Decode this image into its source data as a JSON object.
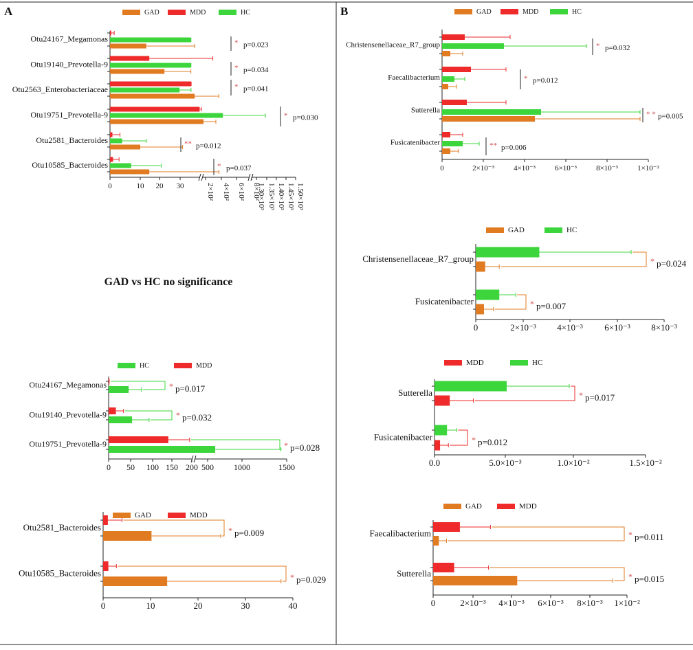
{
  "panels": {
    "A": "A",
    "B": "B"
  },
  "note_text": "GAD vs HC no significance",
  "colors": {
    "GAD": "#E07B22",
    "MDD": "#EE2A2A",
    "HC": "#3CD53C",
    "text": "#111111",
    "sig": "#D24B4B"
  },
  "chart_data": [
    {
      "id": "A1",
      "type": "bar",
      "orientation": "horizontal",
      "legend": [
        "GAD",
        "MDD",
        "HC"
      ],
      "categories": [
        "Otu24167_Megamonas",
        "Otu19140_Prevotella-9",
        "Otu2563_Enterobacteriaceae",
        "Otu19751_Prevotella-9",
        "Otu2581_Bacteroides",
        "Otu10585_Bacteroides"
      ],
      "series": [
        {
          "name": "MDD",
          "values": [
            0.4,
            13,
            39,
            150,
            0.8,
            1.0
          ],
          "errors": [
            1.0,
            21,
            2,
            24,
            2.5,
            2
          ]
        },
        {
          "name": "HC",
          "values": [
            36.5,
            36.5,
            23,
            450,
            4,
            7
          ],
          "errors": [
            1.5,
            1.5,
            16,
            550,
            8,
            10
          ]
        },
        {
          "name": "GAD",
          "values": [
            12,
            18,
            28,
            200,
            10,
            13
          ],
          "errors": [
            16,
            19,
            8,
            160,
            14,
            23
          ]
        }
      ],
      "x_ticks": [
        "0",
        "10",
        "20",
        "30",
        "2×10²",
        "4×10²",
        "6×10²",
        "8×10²",
        "1.30×10³",
        "1.35×10³",
        "1.40×10³",
        "1.45×10³",
        "1.50×10³"
      ],
      "annotations": [
        {
          "category": "Otu24167_Megamonas",
          "stars": "*",
          "p": "p=0.023"
        },
        {
          "category": "Otu19140_Prevotella-9",
          "stars": "*",
          "p": "p=0.034"
        },
        {
          "category": "Otu2563_Enterobacteriaceae",
          "stars": "*",
          "p": "p=0.041"
        },
        {
          "category": "Otu19751_Prevotella-9",
          "stars": "*",
          "p": "p=0.030"
        },
        {
          "category": "Otu2581_Bacteroides",
          "stars": "**",
          "p": "p=0.012"
        },
        {
          "category": "Otu10585_Bacteroides",
          "stars": "*",
          "p": "p=0.037"
        }
      ]
    },
    {
      "id": "A2",
      "type": "bar",
      "orientation": "horizontal",
      "legend": [
        "HC",
        "MDD"
      ],
      "categories": [
        "Otu24167_Megamonas",
        "Otu19140_Prevotella-9",
        "Otu19751_Prevotella-9"
      ],
      "series": [
        {
          "name": "MDD",
          "values": [
            1,
            17,
            140
          ],
          "errors": [
            0.5,
            18,
            50
          ]
        },
        {
          "name": "HC",
          "values": [
            47,
            55,
            500
          ],
          "errors": [
            30,
            40,
            950
          ]
        }
      ],
      "x_ticks": [
        "0",
        "50",
        "100",
        "150",
        "200",
        "500",
        "1000",
        "1500"
      ],
      "annotations": [
        {
          "stars": "*",
          "p": "p=0.017"
        },
        {
          "stars": "*",
          "p": "p=0.032"
        },
        {
          "stars": "*",
          "p": "p=0.028"
        }
      ]
    },
    {
      "id": "A3",
      "type": "bar",
      "orientation": "horizontal",
      "legend": [
        "GAD",
        "MDD"
      ],
      "categories": [
        "Otu2581_Bacteroides",
        "Otu10585_Bacteroides"
      ],
      "series": [
        {
          "name": "MDD",
          "values": [
            1.0,
            1.1
          ],
          "errors": [
            3,
            1.7
          ]
        },
        {
          "name": "GAD",
          "values": [
            10.2,
            13.5
          ],
          "errors": [
            14.6,
            24
          ]
        }
      ],
      "x_ticks": [
        "0",
        "10",
        "20",
        "30",
        "40"
      ],
      "xlim": [
        0,
        40
      ],
      "annotations": [
        {
          "stars": "*",
          "p": "p=0.009"
        },
        {
          "stars": "*",
          "p": "p=0.029"
        }
      ]
    },
    {
      "id": "B1",
      "type": "bar",
      "orientation": "horizontal",
      "legend": [
        "GAD",
        "MDD",
        "HC"
      ],
      "categories": [
        "Christensenellaceae_R7_group",
        "Faecalibacterium",
        "Sutterella",
        "Fusicatenibacter"
      ],
      "series": [
        {
          "name": "MDD",
          "values": [
            0.0011,
            0.0014,
            0.0012,
            0.0004
          ],
          "errors": [
            0.0022,
            0.0017,
            0.0019,
            0.0006
          ]
        },
        {
          "name": "HC",
          "values": [
            0.003,
            0.0006,
            0.0048,
            0.001
          ],
          "errors": [
            0.004,
            0.0005,
            0.0048,
            0.0008
          ]
        },
        {
          "name": "GAD",
          "values": [
            0.0004,
            0.0003,
            0.0045,
            0.0004
          ],
          "errors": [
            0.0006,
            0.0004,
            0.0051,
            0.0004
          ]
        }
      ],
      "x_ticks": [
        "0",
        "2×10⁻³",
        "4×10⁻³",
        "6×10⁻³",
        "8×10⁻³",
        "1×10⁻²"
      ],
      "xlim": [
        0,
        0.01
      ],
      "annotations": [
        {
          "stars": "*",
          "p": "p=0.032"
        },
        {
          "stars": "*",
          "p": "p=0.012"
        },
        {
          "stars": "* *",
          "p": "p=0.005"
        },
        {
          "stars": "**",
          "p": "p=0.006"
        }
      ]
    },
    {
      "id": "B2",
      "type": "bar",
      "orientation": "horizontal",
      "legend": [
        "GAD",
        "HC"
      ],
      "categories": [
        "Christensenellaceae_R7_group",
        "Fusicatenibacter"
      ],
      "series": [
        {
          "name": "HC",
          "values": [
            0.0027,
            0.001
          ],
          "errors": [
            0.0039,
            0.0007
          ]
        },
        {
          "name": "GAD",
          "values": [
            0.0004,
            0.00035
          ],
          "errors": [
            0.0006,
            0.0004
          ]
        }
      ],
      "x_ticks": [
        "0",
        "2×10⁻³",
        "4×10⁻³",
        "6×10⁻³",
        "8×10⁻³"
      ],
      "xlim": [
        0,
        0.008
      ],
      "annotations": [
        {
          "stars": "*",
          "p": "p=0.024"
        },
        {
          "stars": "*",
          "p": "p=0.007"
        }
      ]
    },
    {
      "id": "B3",
      "type": "bar",
      "orientation": "horizontal",
      "legend": [
        "MDD",
        "HC"
      ],
      "categories": [
        "Sutterella",
        "Fusicatenibacter"
      ],
      "series": [
        {
          "name": "HC",
          "values": [
            0.0052,
            0.0009
          ],
          "errors": [
            0.0045,
            0.0007
          ]
        },
        {
          "name": "MDD",
          "values": [
            0.0011,
            0.0004
          ],
          "errors": [
            0.0017,
            0.0006
          ]
        }
      ],
      "x_ticks": [
        "0.0",
        "5.0×10⁻³",
        "1.0×10⁻²",
        "1.5×10⁻²"
      ],
      "xlim": [
        0,
        0.015
      ],
      "annotations": [
        {
          "stars": "*",
          "p": "p=0.017"
        },
        {
          "stars": "*",
          "p": "p=0.012"
        }
      ]
    },
    {
      "id": "B4",
      "type": "bar",
      "orientation": "horizontal",
      "legend": [
        "GAD",
        "MDD"
      ],
      "categories": [
        "Faecalibacterium",
        "Sutterella"
      ],
      "series": [
        {
          "name": "MDD",
          "values": [
            0.0014,
            0.0011
          ],
          "errors": [
            0.0016,
            0.0018
          ]
        },
        {
          "name": "GAD",
          "values": [
            0.0003,
            0.0044
          ],
          "errors": [
            0.0004,
            0.005
          ]
        }
      ],
      "x_ticks": [
        "0",
        "2×10⁻³",
        "4×10⁻³",
        "6×10⁻³",
        "8×10⁻³",
        "1×10⁻²"
      ],
      "xlim": [
        0,
        0.01
      ],
      "annotations": [
        {
          "stars": "*",
          "p": "p=0.011"
        },
        {
          "stars": "*",
          "p": "p=0.015"
        }
      ]
    }
  ]
}
